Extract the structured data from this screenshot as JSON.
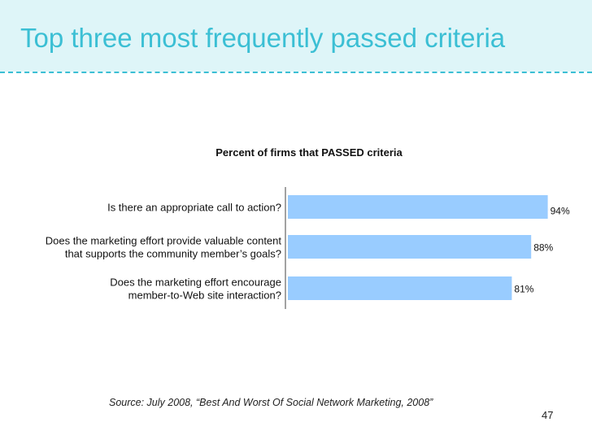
{
  "slide": {
    "title": "Top three most frequently passed criteria",
    "source": "Source: July 2008, “Best And Worst Of Social Network Marketing, 2008”",
    "page_number": "47"
  },
  "colors": {
    "bar": "#99ccff",
    "title": "#3bbfd4",
    "header_bg": "#def5f8"
  },
  "chart_data": {
    "type": "bar",
    "orientation": "horizontal",
    "title": "Percent of firms that PASSED criteria",
    "categories": [
      [
        "Is there an appropriate call to action?"
      ],
      [
        "Does the marketing effort provide valuable content",
        "that supports the community member’s goals?"
      ],
      [
        "Does the marketing effort encourage",
        "member-to-Web site interaction?"
      ]
    ],
    "values": [
      94,
      88,
      81
    ],
    "value_labels": [
      "94%",
      "88%",
      "81%"
    ],
    "xlim": [
      0,
      100
    ],
    "grid": false,
    "legend": "none"
  }
}
